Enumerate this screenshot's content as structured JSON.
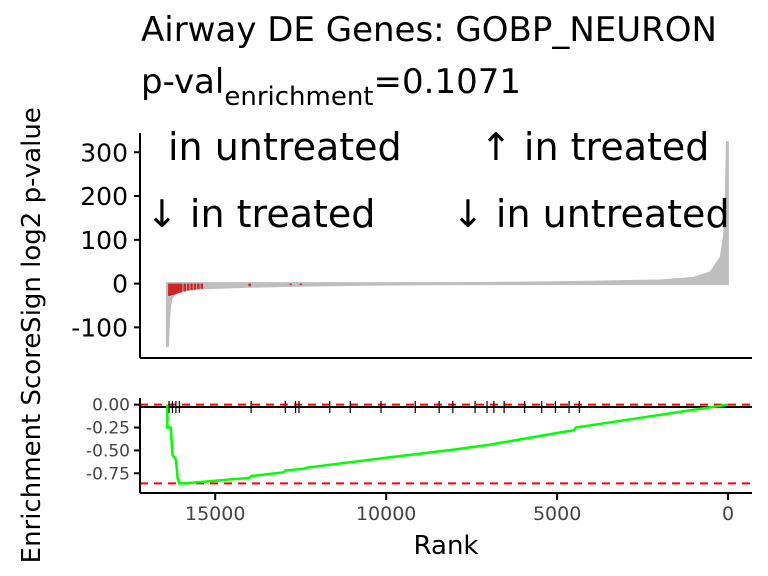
{
  "title": {
    "line1": "Airway DE Genes: GOBP_NEURON",
    "pval_prefix": "p-val",
    "pval_sub": "enrichment",
    "pval_value": "=0.1071"
  },
  "annotations": {
    "top_left": "in untreated",
    "top_right": "↑ in treated",
    "bottom_left": "↓ in treated",
    "bottom_right": "↓ in untreated"
  },
  "colors": {
    "background_bars": "#bebebe",
    "gene_set_bars": "#cd2626",
    "running_score": "#00ff00",
    "threshold_line": "#ff0000"
  },
  "chart_data": [
    {
      "type": "bar",
      "panel": "top",
      "ylabel": "Sign log2 p-value",
      "xlim": [
        17200,
        -700
      ],
      "ylim": [
        -170,
        360
      ],
      "yticks": [
        300,
        200,
        100,
        0,
        -100
      ],
      "background_curve": [
        [
          16400,
          -145
        ],
        [
          16350,
          -60
        ],
        [
          16300,
          -35
        ],
        [
          16200,
          -22
        ],
        [
          16000,
          -15
        ],
        [
          15500,
          -10
        ],
        [
          14000,
          -6
        ],
        [
          12000,
          -3
        ],
        [
          10000,
          -1
        ],
        [
          8000,
          0
        ],
        [
          6000,
          1
        ],
        [
          4000,
          3
        ],
        [
          2000,
          6
        ],
        [
          1000,
          12
        ],
        [
          500,
          25
        ],
        [
          200,
          60
        ],
        [
          100,
          110
        ],
        [
          50,
          200
        ],
        [
          20,
          325
        ]
      ],
      "gene_set_bars": [
        [
          16350,
          -28
        ],
        [
          16300,
          -27
        ],
        [
          16250,
          -26
        ],
        [
          16200,
          -25
        ],
        [
          16150,
          -24
        ],
        [
          16100,
          -22
        ],
        [
          16050,
          -21
        ],
        [
          16000,
          -20
        ],
        [
          15900,
          -18
        ],
        [
          15800,
          -16
        ],
        [
          15700,
          -15
        ],
        [
          15600,
          -14
        ],
        [
          15500,
          -13
        ],
        [
          15400,
          -12
        ],
        [
          14000,
          -6
        ],
        [
          12800,
          -3
        ],
        [
          12500,
          -3
        ]
      ]
    },
    {
      "type": "line",
      "panel": "bottom",
      "xlabel": "Rank",
      "ylabel": "Enrichment Score",
      "xlim": [
        17200,
        -700
      ],
      "ylim": [
        -0.9,
        0.04
      ],
      "xticks": [
        15000,
        10000,
        5000,
        0
      ],
      "yticks": [
        0.0,
        -0.25,
        -0.5,
        -0.75
      ],
      "ytick_labels": [
        "0.00",
        "-0.25",
        "-0.50",
        "-0.75"
      ],
      "min_es_line": -0.86,
      "zero_line": 0,
      "running_score": [
        [
          16400,
          0
        ],
        [
          16400,
          -0.25
        ],
        [
          16300,
          -0.25
        ],
        [
          16250,
          -0.55
        ],
        [
          16150,
          -0.6
        ],
        [
          16100,
          -0.8
        ],
        [
          16050,
          -0.86
        ],
        [
          15900,
          -0.86
        ],
        [
          14000,
          -0.8
        ],
        [
          13950,
          -0.78
        ],
        [
          13000,
          -0.74
        ],
        [
          12950,
          -0.72
        ],
        [
          12400,
          -0.7
        ],
        [
          12350,
          -0.69
        ],
        [
          10000,
          -0.58
        ],
        [
          8000,
          -0.49
        ],
        [
          7000,
          -0.44
        ],
        [
          5000,
          -0.31
        ],
        [
          4500,
          -0.28
        ],
        [
          4450,
          -0.25
        ],
        [
          0,
          0
        ]
      ],
      "gene_set_ranks": [
        16350,
        16250,
        16150,
        16050,
        13950,
        12950,
        12650,
        12550,
        11650,
        11050,
        10150,
        9150,
        8450,
        8050,
        7400,
        7050,
        6850,
        6550,
        5950,
        5450,
        5050,
        4650,
        4350
      ]
    }
  ]
}
